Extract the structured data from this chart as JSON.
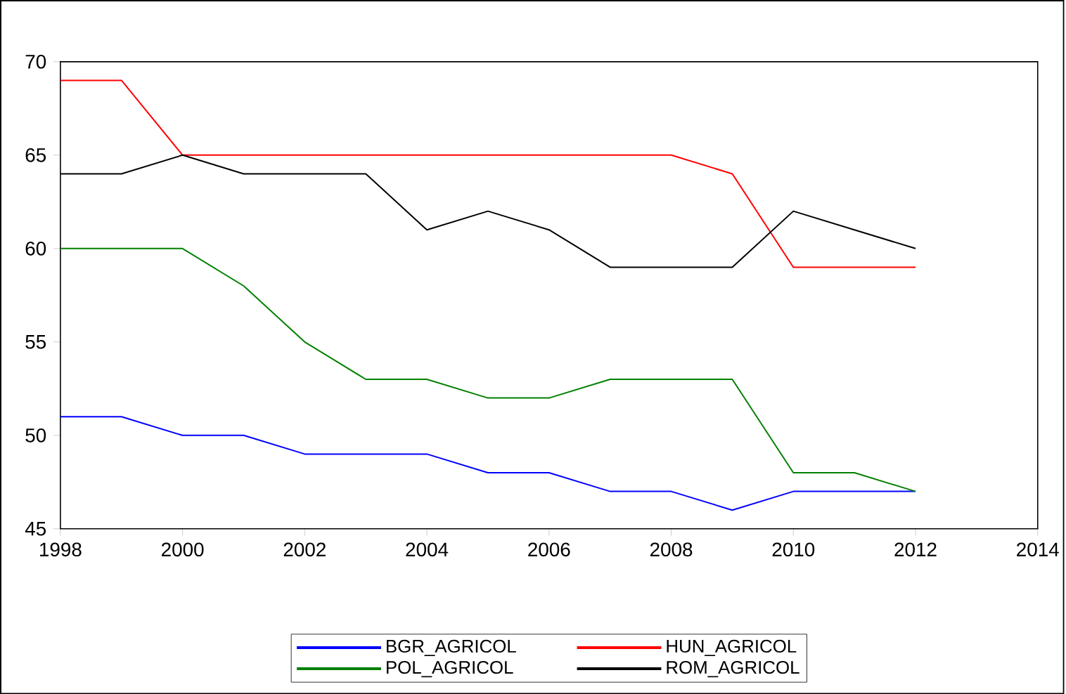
{
  "chart_data": {
    "type": "line",
    "x": [
      1998,
      1999,
      2000,
      2001,
      2002,
      2003,
      2004,
      2005,
      2006,
      2007,
      2008,
      2009,
      2010,
      2011,
      2012
    ],
    "series": [
      {
        "name": "BGR_AGRICOL",
        "color": "#0000ff",
        "values": [
          51,
          51,
          50,
          50,
          49,
          49,
          49,
          48,
          48,
          47,
          47,
          46,
          47,
          47,
          47
        ]
      },
      {
        "name": "HUN_AGRICOL",
        "color": "#ff0000",
        "values": [
          69,
          69,
          65,
          65,
          65,
          65,
          65,
          65,
          65,
          65,
          65,
          64,
          59,
          59,
          59
        ]
      },
      {
        "name": "POL_AGRICOL",
        "color": "#008000",
        "values": [
          60,
          60,
          60,
          58,
          55,
          53,
          53,
          52,
          52,
          53,
          53,
          53,
          48,
          48,
          47
        ]
      },
      {
        "name": "ROM_AGRICOL",
        "color": "#000000",
        "values": [
          64,
          64,
          65,
          64,
          64,
          64,
          61,
          62,
          61,
          59,
          59,
          59,
          62,
          61,
          60
        ]
      }
    ],
    "xlim": [
      1998,
      2014
    ],
    "xticks": [
      1998,
      2000,
      2002,
      2004,
      2006,
      2008,
      2010,
      2012,
      2014
    ],
    "ylim": [
      45,
      70
    ],
    "yticks": [
      45,
      50,
      55,
      60,
      65,
      70
    ],
    "legend": "bottom",
    "grid": false,
    "marker": "none",
    "line_style": "solid"
  }
}
